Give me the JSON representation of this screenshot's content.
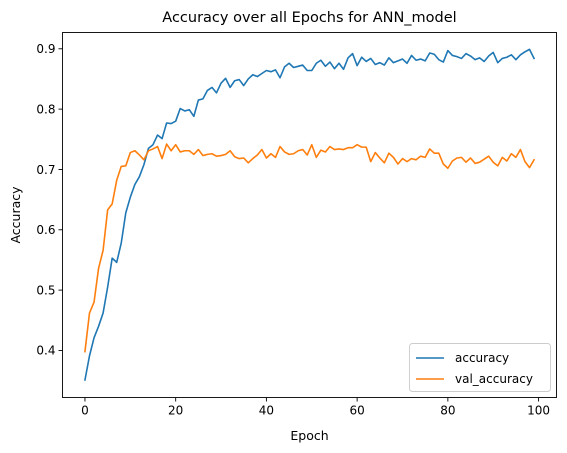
{
  "chart_data": {
    "type": "line",
    "title": "Accuracy over all Epochs for ANN_model",
    "xlabel": "Epoch",
    "ylabel": "Accuracy",
    "xlim": [
      -4.95,
      103.95
    ],
    "ylim": [
      0.322,
      0.927
    ],
    "xticks": [
      0,
      20,
      40,
      60,
      80,
      100
    ],
    "yticks": [
      0.4,
      0.5,
      0.6,
      0.7,
      0.8,
      0.9
    ],
    "xtick_labels": [
      "0",
      "20",
      "40",
      "60",
      "80",
      "100"
    ],
    "ytick_labels": [
      "0.4",
      "0.5",
      "0.6",
      "0.7",
      "0.8",
      "0.9"
    ],
    "grid": false,
    "legend": "lower-right",
    "series": [
      {
        "name": "accuracy",
        "color": "#1f77b4",
        "x": [
          0,
          1,
          2,
          3,
          4,
          5,
          6,
          7,
          8,
          9,
          10,
          11,
          12,
          13,
          14,
          15,
          16,
          17,
          18,
          19,
          20,
          21,
          22,
          23,
          24,
          25,
          26,
          27,
          28,
          29,
          30,
          31,
          32,
          33,
          34,
          35,
          36,
          37,
          38,
          39,
          40,
          41,
          42,
          43,
          44,
          45,
          46,
          47,
          48,
          49,
          50,
          51,
          52,
          53,
          54,
          55,
          56,
          57,
          58,
          59,
          60,
          61,
          62,
          63,
          64,
          65,
          66,
          67,
          68,
          69,
          70,
          71,
          72,
          73,
          74,
          75,
          76,
          77,
          78,
          79,
          80,
          81,
          82,
          83,
          84,
          85,
          86,
          87,
          88,
          89,
          90,
          91,
          92,
          93,
          94,
          95,
          96,
          97,
          98,
          99
        ],
        "values": [
          0.351,
          0.391,
          0.421,
          0.44,
          0.462,
          0.505,
          0.553,
          0.546,
          0.578,
          0.628,
          0.654,
          0.675,
          0.688,
          0.708,
          0.735,
          0.741,
          0.757,
          0.751,
          0.777,
          0.776,
          0.78,
          0.801,
          0.797,
          0.799,
          0.788,
          0.815,
          0.817,
          0.831,
          0.836,
          0.827,
          0.843,
          0.851,
          0.836,
          0.847,
          0.849,
          0.839,
          0.85,
          0.857,
          0.854,
          0.859,
          0.864,
          0.862,
          0.865,
          0.852,
          0.87,
          0.876,
          0.869,
          0.871,
          0.873,
          0.864,
          0.864,
          0.876,
          0.881,
          0.871,
          0.878,
          0.867,
          0.876,
          0.866,
          0.885,
          0.892,
          0.872,
          0.886,
          0.879,
          0.884,
          0.874,
          0.877,
          0.873,
          0.885,
          0.877,
          0.88,
          0.883,
          0.876,
          0.889,
          0.881,
          0.883,
          0.88,
          0.893,
          0.891,
          0.882,
          0.878,
          0.897,
          0.889,
          0.887,
          0.884,
          0.892,
          0.888,
          0.882,
          0.885,
          0.879,
          0.888,
          0.894,
          0.877,
          0.884,
          0.886,
          0.89,
          0.882,
          0.89,
          0.895,
          0.899,
          0.884
        ]
      },
      {
        "name": "val_accuracy",
        "color": "#ff7f0e",
        "x": [
          0,
          1,
          2,
          3,
          4,
          5,
          6,
          7,
          8,
          9,
          10,
          11,
          12,
          13,
          14,
          15,
          16,
          17,
          18,
          19,
          20,
          21,
          22,
          23,
          24,
          25,
          26,
          27,
          28,
          29,
          30,
          31,
          32,
          33,
          34,
          35,
          36,
          37,
          38,
          39,
          40,
          41,
          42,
          43,
          44,
          45,
          46,
          47,
          48,
          49,
          50,
          51,
          52,
          53,
          54,
          55,
          56,
          57,
          58,
          59,
          60,
          61,
          62,
          63,
          64,
          65,
          66,
          67,
          68,
          69,
          70,
          71,
          72,
          73,
          74,
          75,
          76,
          77,
          78,
          79,
          80,
          81,
          82,
          83,
          84,
          85,
          86,
          87,
          88,
          89,
          90,
          91,
          92,
          93,
          94,
          95,
          96,
          97,
          98,
          99
        ],
        "values": [
          0.398,
          0.462,
          0.48,
          0.536,
          0.566,
          0.633,
          0.643,
          0.682,
          0.705,
          0.706,
          0.728,
          0.731,
          0.724,
          0.716,
          0.731,
          0.734,
          0.738,
          0.718,
          0.742,
          0.731,
          0.741,
          0.729,
          0.731,
          0.731,
          0.725,
          0.733,
          0.723,
          0.725,
          0.726,
          0.722,
          0.723,
          0.725,
          0.731,
          0.721,
          0.718,
          0.719,
          0.711,
          0.718,
          0.724,
          0.733,
          0.719,
          0.726,
          0.72,
          0.738,
          0.729,
          0.725,
          0.726,
          0.731,
          0.733,
          0.724,
          0.741,
          0.72,
          0.732,
          0.729,
          0.738,
          0.733,
          0.734,
          0.733,
          0.736,
          0.736,
          0.741,
          0.737,
          0.737,
          0.713,
          0.728,
          0.719,
          0.711,
          0.727,
          0.72,
          0.709,
          0.718,
          0.713,
          0.718,
          0.716,
          0.722,
          0.72,
          0.734,
          0.727,
          0.727,
          0.709,
          0.702,
          0.714,
          0.719,
          0.72,
          0.712,
          0.719,
          0.71,
          0.712,
          0.717,
          0.722,
          0.712,
          0.706,
          0.72,
          0.714,
          0.726,
          0.72,
          0.733,
          0.713,
          0.703,
          0.716
        ]
      }
    ]
  }
}
